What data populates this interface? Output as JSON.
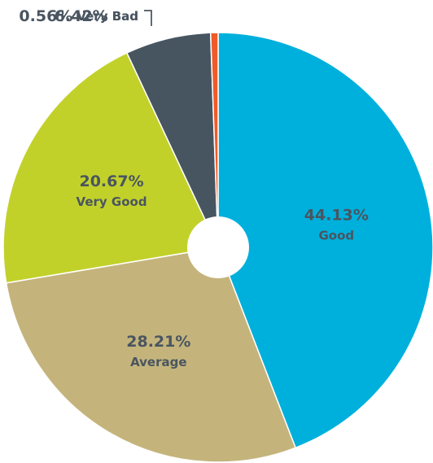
{
  "chart_data": {
    "type": "pie",
    "categories": [
      "Good",
      "Average",
      "Very Good",
      "Bad",
      "Very Bad"
    ],
    "values": [
      44.13,
      28.21,
      20.67,
      6.42,
      0.56
    ],
    "value_labels": [
      "44.13%",
      "28.21%",
      "20.67%",
      "6.42%",
      "0.56%"
    ],
    "colors": [
      "#00b0dc",
      "#c4b47c",
      "#c2d12a",
      "#475560",
      "#f05a28"
    ]
  }
}
